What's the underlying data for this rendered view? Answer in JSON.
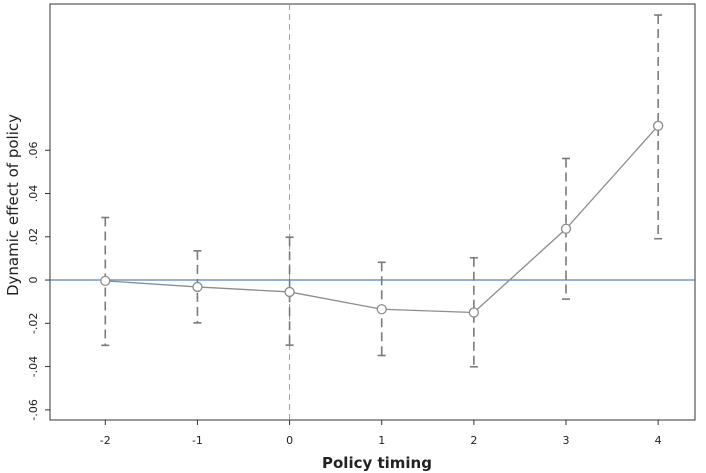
{
  "chart_data": {
    "type": "scatter",
    "xlabel": "Policy timing",
    "ylabel": "Dynamic effect of policy",
    "x": [
      -2,
      -1,
      0,
      1,
      2,
      3,
      4
    ],
    "x_tick_labels": [
      "-2",
      "-1",
      "0",
      "1",
      "2",
      "3",
      "4"
    ],
    "y_ticks": [
      -0.06,
      -0.04,
      -0.02,
      0,
      0.02,
      0.04,
      0.06
    ],
    "y_tick_labels": [
      "-.06",
      "-.04",
      "-.02",
      "0",
      ".02",
      ".04",
      ".06"
    ],
    "xlim": [
      -2.6,
      4.4
    ],
    "ylim": [
      -0.0647,
      0.1276
    ],
    "series": [
      {
        "values": [
          -0.0004,
          -0.0032,
          -0.0055,
          -0.0135,
          -0.015,
          0.0237,
          0.0713
        ],
        "ci_lower": [
          -0.0302,
          -0.0198,
          -0.0301,
          -0.0349,
          -0.0401,
          -0.0088,
          0.0191
        ],
        "ci_upper": [
          0.0289,
          0.0135,
          0.0198,
          0.0082,
          0.0103,
          0.0562,
          0.1225
        ]
      }
    ],
    "reference_lines": {
      "horizontal_y": 0,
      "vertical_x": 0
    },
    "colors": {
      "series": "#8c8c8c",
      "error_bars": "#7a7a7a",
      "horizontal_reference": "#4a86b8",
      "vertical_reference": "#6fa6cf",
      "axes": "#333333"
    }
  }
}
